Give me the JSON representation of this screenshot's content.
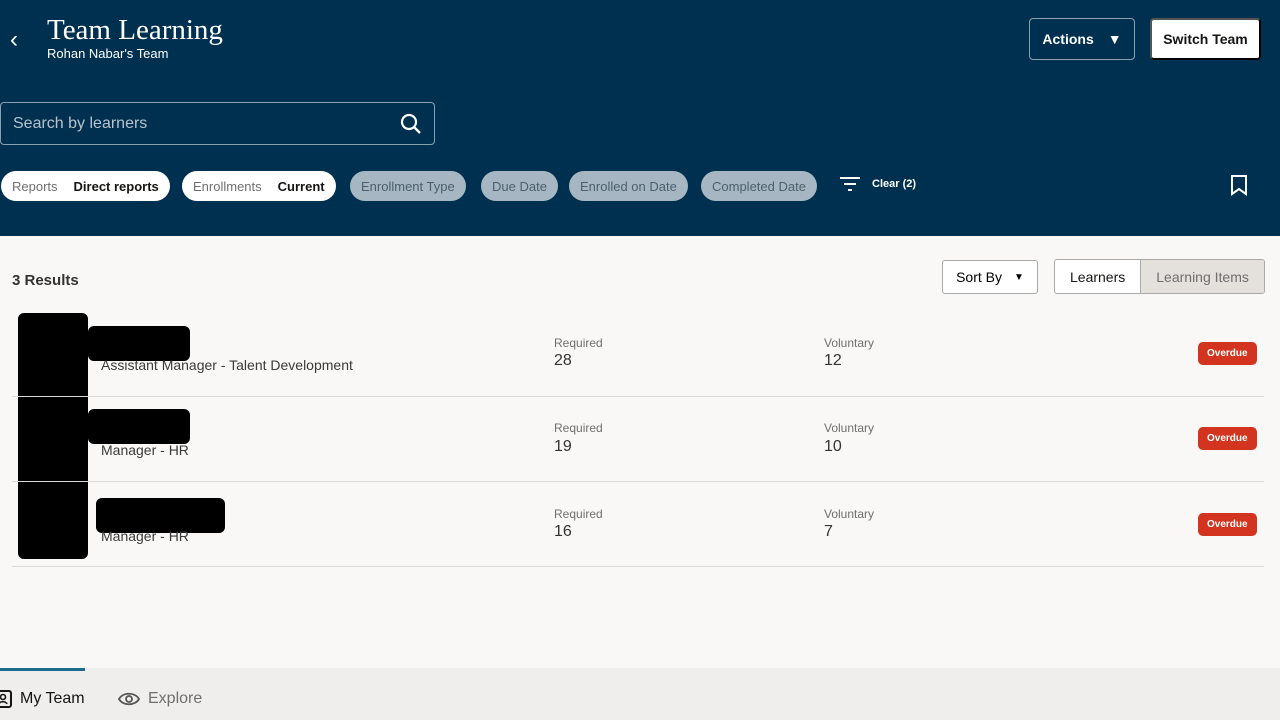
{
  "header": {
    "title": "Team Learning",
    "subtitle": "Rohan Nabar's Team",
    "actions_label": "Actions",
    "switch_team_label": "Switch Team"
  },
  "search": {
    "placeholder": "Search by learners"
  },
  "filters": {
    "chips": [
      {
        "label": "Reports",
        "value": "Direct reports"
      },
      {
        "label": "Enrollments",
        "value": "Current"
      }
    ],
    "options": [
      "Enrollment Type",
      "Due Date",
      "Enrolled on Date",
      "Completed Date"
    ],
    "clear_label": "Clear (2)"
  },
  "results": {
    "count_label": "3 Results",
    "sort_label": "Sort By",
    "view_toggle": [
      "Learners",
      "Learning Items"
    ]
  },
  "learners": [
    {
      "job": "Assistant Manager - Talent Development",
      "required_label": "Required",
      "required": "28",
      "voluntary_label": "Voluntary",
      "voluntary": "12",
      "status": "Overdue"
    },
    {
      "job": "Manager - HR",
      "required_label": "Required",
      "required": "19",
      "voluntary_label": "Voluntary",
      "voluntary": "10",
      "status": "Overdue"
    },
    {
      "job": "Manager - HR",
      "required_label": "Required",
      "required": "16",
      "voluntary_label": "Voluntary",
      "voluntary": "7",
      "status": "Overdue"
    }
  ],
  "footer": {
    "tabs": [
      "My Team",
      "Explore"
    ]
  },
  "colors": {
    "header": "#00304f",
    "overdue": "#d2341f",
    "tab_indicator": "#1b6d8f"
  }
}
